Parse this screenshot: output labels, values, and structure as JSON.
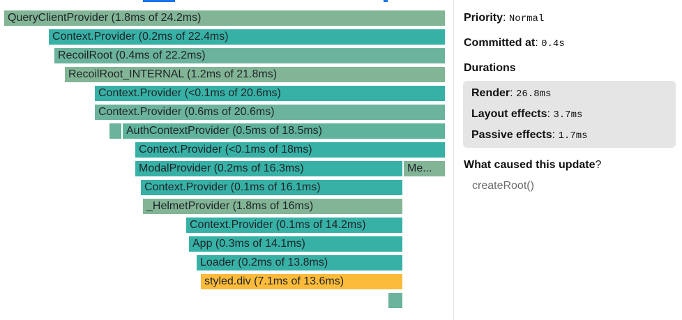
{
  "flamegraph": {
    "bars": [
      {
        "label": "QueryClientProvider (1.8ms of 24.2ms)",
        "color": "#82b596"
      },
      {
        "label": "Context.Provider (0.2ms of 22.4ms)",
        "color": "#37b1a6"
      },
      {
        "label": "RecoilRoot (0.4ms of 22.2ms)",
        "color": "#6bb39c"
      },
      {
        "label": "RecoilRoot_INTERNAL (1.2ms of 21.8ms)",
        "color": "#82b596"
      },
      {
        "label": "Context.Provider (<0.1ms of 20.6ms)",
        "color": "#37b1a6"
      },
      {
        "label": "Context.Provider (0.6ms of 20.6ms)",
        "color": "#6bb39c"
      },
      {
        "label": "",
        "color": "#6bb39c"
      },
      {
        "label": "AuthContextProvider (0.5ms of 18.5ms)",
        "color": "#5fb39a"
      },
      {
        "label": "Context.Provider (<0.1ms of 18ms)",
        "color": "#37b1a6"
      },
      {
        "label": "ModalProvider (0.2ms of 16.3ms)",
        "color": "#37b1a6"
      },
      {
        "label": "Me...",
        "color": "#82b596"
      },
      {
        "label": "Context.Provider (0.1ms of 16.1ms)",
        "color": "#37b1a6"
      },
      {
        "label": "_HelmetProvider (1.8ms of 16ms)",
        "color": "#82b596"
      },
      {
        "label": "Context.Provider (0.1ms of 14.2ms)",
        "color": "#37b1a6"
      },
      {
        "label": "App (0.3ms of 14.1ms)",
        "color": "#37b1a6"
      },
      {
        "label": "Loader (0.2ms of 13.8ms)",
        "color": "#37b1a6"
      },
      {
        "label": "styled.div (7.1ms of 13.6ms)",
        "color": "#fdbb3b"
      },
      {
        "label": "",
        "color": "#6bb39c"
      }
    ]
  },
  "details": {
    "priority_label": "Priority",
    "priority_value": "Normal",
    "committed_label": "Committed at",
    "committed_value": "0.4s",
    "durations_heading": "Durations",
    "render_label": "Render",
    "render_value": "26.8ms",
    "layout_label": "Layout effects",
    "layout_value": "3.7ms",
    "passive_label": "Passive effects",
    "passive_value": "1.7ms",
    "cause_heading": "What caused this update",
    "cause_value": "createRoot()"
  }
}
